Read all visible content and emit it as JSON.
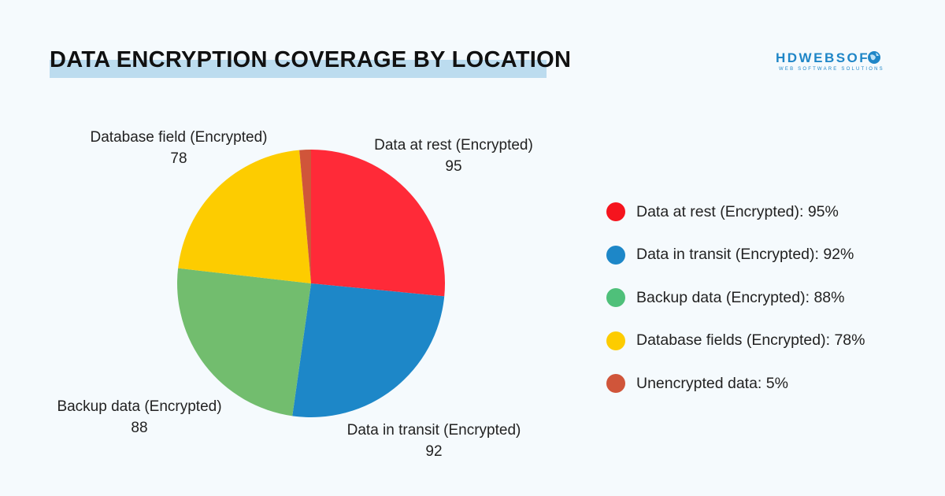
{
  "title": "DATA ENCRYPTION COVERAGE BY LOCATION",
  "logo": {
    "name": "HDWEBSOFT",
    "tagline": "WEB SOFTWARE SOLUTIONS",
    "color": "#1f86c7"
  },
  "chart_data": {
    "type": "pie",
    "start_angle_deg": 0,
    "direction": "clockwise",
    "slices": [
      {
        "label": "Data at rest (Encrypted)",
        "value": 95,
        "color": "#ff2a38"
      },
      {
        "label": "Data in transit (Encrypted)",
        "value": 92,
        "color": "#1d87c8"
      },
      {
        "label": "Backup data (Encrypted)",
        "value": 88,
        "color": "#72bd6e"
      },
      {
        "label": "Database field (Encrypted)",
        "value": 78,
        "color": "#fdcc00"
      },
      {
        "label": "",
        "value": 5,
        "color": "#d0553a"
      }
    ],
    "data_labels": [
      {
        "name": "Data at rest (Encrypted)",
        "value": "95"
      },
      {
        "name": "Data in transit (Encrypted)",
        "value": "92"
      },
      {
        "name": "Backup data (Encrypted)",
        "value": "88"
      },
      {
        "name": "Database field (Encrypted)",
        "value": "78"
      }
    ],
    "legend_placement": "right",
    "legend": [
      {
        "text": "Data at rest (Encrypted): 95%",
        "color": "#f5141e"
      },
      {
        "text": "Data in transit (Encrypted): 92%",
        "color": "#1d87c8"
      },
      {
        "text": "Backup data (Encrypted): 88%",
        "color": "#4fc07a"
      },
      {
        "text": "Database fields (Encrypted): 78%",
        "color": "#fdcc00"
      },
      {
        "text": "Unencrypted data: 5%",
        "color": "#d0553a"
      }
    ]
  }
}
